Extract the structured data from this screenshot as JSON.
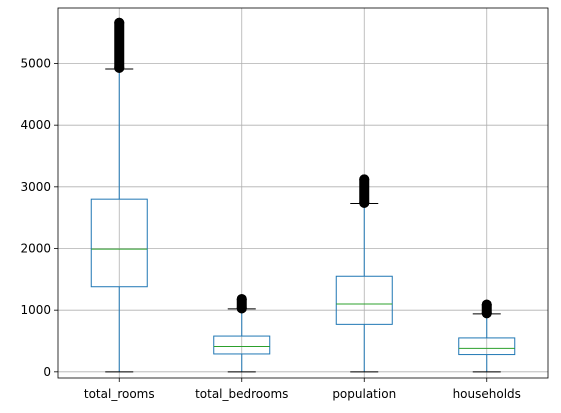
{
  "chart_data": {
    "type": "box",
    "title": "",
    "xlabel": "",
    "ylabel": "",
    "categories": [
      "total_rooms",
      "total_bedrooms",
      "population",
      "households"
    ],
    "ylim": [
      -100,
      5900
    ],
    "yticks": [
      0,
      1000,
      2000,
      3000,
      4000,
      5000
    ],
    "grid": true,
    "colors": {
      "box": "#1f77b4",
      "median": "#2ca02c",
      "whisker_cap": "#000000",
      "flier": "#000000",
      "grid": "#b0b0b0"
    },
    "boxes": [
      {
        "name": "total_rooms",
        "whisker_low": 0,
        "q1": 1380,
        "median": 1990,
        "q3": 2800,
        "whisker_high": 4910,
        "outliers_min": 4930,
        "outliers_max": 5660
      },
      {
        "name": "total_bedrooms",
        "whisker_low": 0,
        "q1": 290,
        "median": 410,
        "q3": 580,
        "whisker_high": 1020,
        "outliers_min": 1030,
        "outliers_max": 1180
      },
      {
        "name": "population",
        "whisker_low": 0,
        "q1": 770,
        "median": 1100,
        "q3": 1550,
        "whisker_high": 2730,
        "outliers_min": 2740,
        "outliers_max": 3120
      },
      {
        "name": "households",
        "whisker_low": 0,
        "q1": 280,
        "median": 380,
        "q3": 550,
        "whisker_high": 940,
        "outliers_min": 950,
        "outliers_max": 1090
      }
    ]
  }
}
